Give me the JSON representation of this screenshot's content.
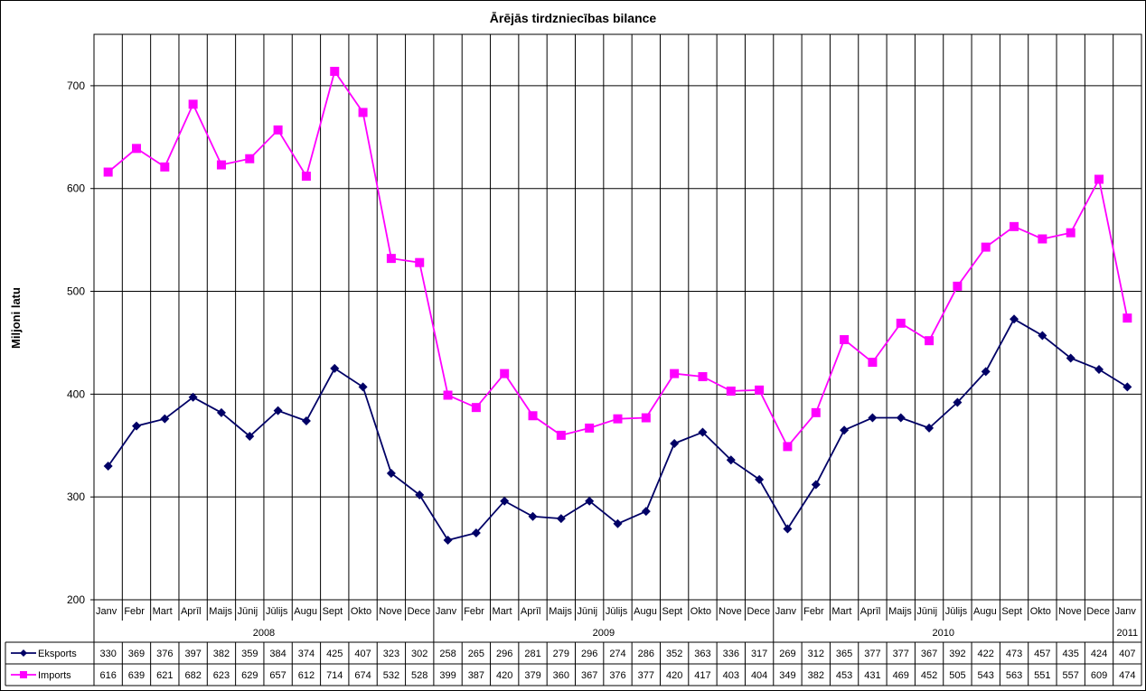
{
  "chart_data": {
    "type": "line",
    "title": "Ārējās tirdzniecības bilance",
    "ylabel": "Miljoni latu",
    "xlabel": "",
    "ylim": [
      200,
      750
    ],
    "yticks": [
      200,
      300,
      400,
      500,
      600,
      700
    ],
    "grid": true,
    "legend": "table-bottom",
    "categories": [
      "Janv",
      "Febr",
      "Mart",
      "Aprīl",
      "Maijs",
      "Jūnij",
      "Jūlijs",
      "Augu",
      "Sept",
      "Okto",
      "Nove",
      "Dece",
      "Janv",
      "Febr",
      "Mart",
      "Aprīl",
      "Maijs",
      "Jūnij",
      "Jūlijs",
      "Augu",
      "Sept",
      "Okto",
      "Nove",
      "Dece",
      "Janv",
      "Febr",
      "Mart",
      "Aprīl",
      "Maijs",
      "Jūnij",
      "Jūlijs",
      "Augu",
      "Sept",
      "Okto",
      "Nove",
      "Dece",
      "Janv"
    ],
    "years": [
      {
        "label": "2008",
        "count": 12
      },
      {
        "label": "2009",
        "count": 12
      },
      {
        "label": "2010",
        "count": 12
      },
      {
        "label": "2011",
        "count": 1
      }
    ],
    "series": [
      {
        "name": "Eksports",
        "color": "#000066",
        "marker": "diamond",
        "values": [
          330,
          369,
          376,
          397,
          382,
          359,
          384,
          374,
          425,
          407,
          323,
          302,
          258,
          265,
          296,
          281,
          279,
          296,
          274,
          286,
          352,
          363,
          336,
          317,
          269,
          312,
          365,
          377,
          377,
          367,
          392,
          422,
          473,
          457,
          435,
          424,
          407
        ]
      },
      {
        "name": "Imports",
        "color": "#FF00FF",
        "marker": "square",
        "values": [
          616,
          639,
          621,
          682,
          623,
          629,
          657,
          612,
          714,
          674,
          532,
          528,
          399,
          387,
          420,
          379,
          360,
          367,
          376,
          377,
          420,
          417,
          403,
          404,
          349,
          382,
          453,
          431,
          469,
          452,
          505,
          543,
          563,
          551,
          557,
          609,
          474
        ]
      }
    ]
  }
}
